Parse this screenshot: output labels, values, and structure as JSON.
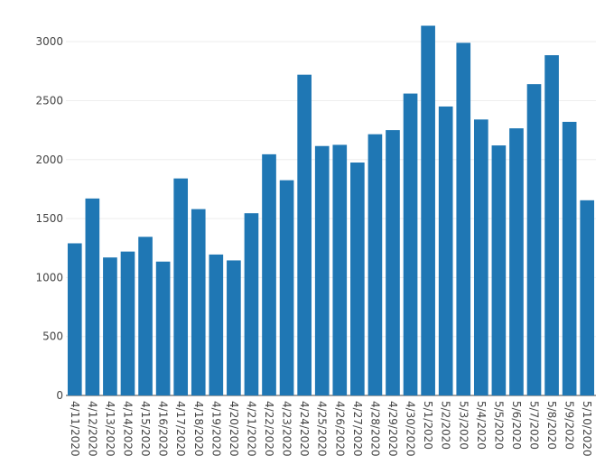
{
  "chart_data": {
    "type": "bar",
    "title": "",
    "xlabel": "",
    "ylabel": "",
    "ylim": [
      0,
      3200
    ],
    "yticks": [
      0,
      500,
      1000,
      1500,
      2000,
      2500,
      3000
    ],
    "grid": true,
    "bar_color": "#1f77b4",
    "categories": [
      "4/11/2020",
      "4/12/2020",
      "4/13/2020",
      "4/14/2020",
      "4/15/2020",
      "4/16/2020",
      "4/17/2020",
      "4/18/2020",
      "4/19/2020",
      "4/20/2020",
      "4/21/2020",
      "4/22/2020",
      "4/23/2020",
      "4/24/2020",
      "4/25/2020",
      "4/26/2020",
      "4/27/2020",
      "4/28/2020",
      "4/29/2020",
      "4/30/2020",
      "5/1/2020",
      "5/2/2020",
      "5/3/2020",
      "5/4/2020",
      "5/5/2020",
      "5/6/2020",
      "5/7/2020",
      "5/8/2020",
      "5/9/2020",
      "5/10/2020"
    ],
    "values": [
      1290,
      1670,
      1170,
      1220,
      1345,
      1135,
      1840,
      1580,
      1195,
      1145,
      1545,
      2045,
      1825,
      2720,
      2115,
      2125,
      1975,
      2215,
      2250,
      2560,
      3135,
      2450,
      2990,
      2340,
      2120,
      2265,
      2640,
      2885,
      2320,
      1655
    ]
  }
}
